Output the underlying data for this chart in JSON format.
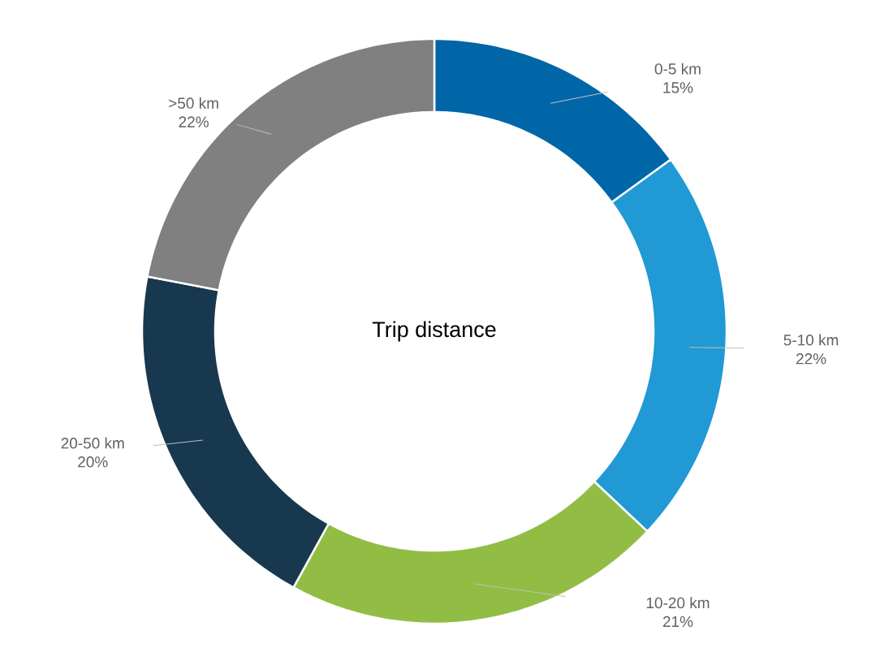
{
  "chart_data": {
    "type": "donut",
    "title": "Trip distance",
    "categories": [
      "0-5 km",
      "5-10 km",
      "10-20 km",
      "20-50 km",
      ">50 km"
    ],
    "values": [
      15,
      22,
      21,
      20,
      22
    ],
    "value_labels": [
      "15%",
      "22%",
      "21%",
      "20%",
      "22%"
    ],
    "colors": [
      "#0066a8",
      "#2199d4",
      "#92bd44",
      "#18384f",
      "#808080"
    ]
  }
}
